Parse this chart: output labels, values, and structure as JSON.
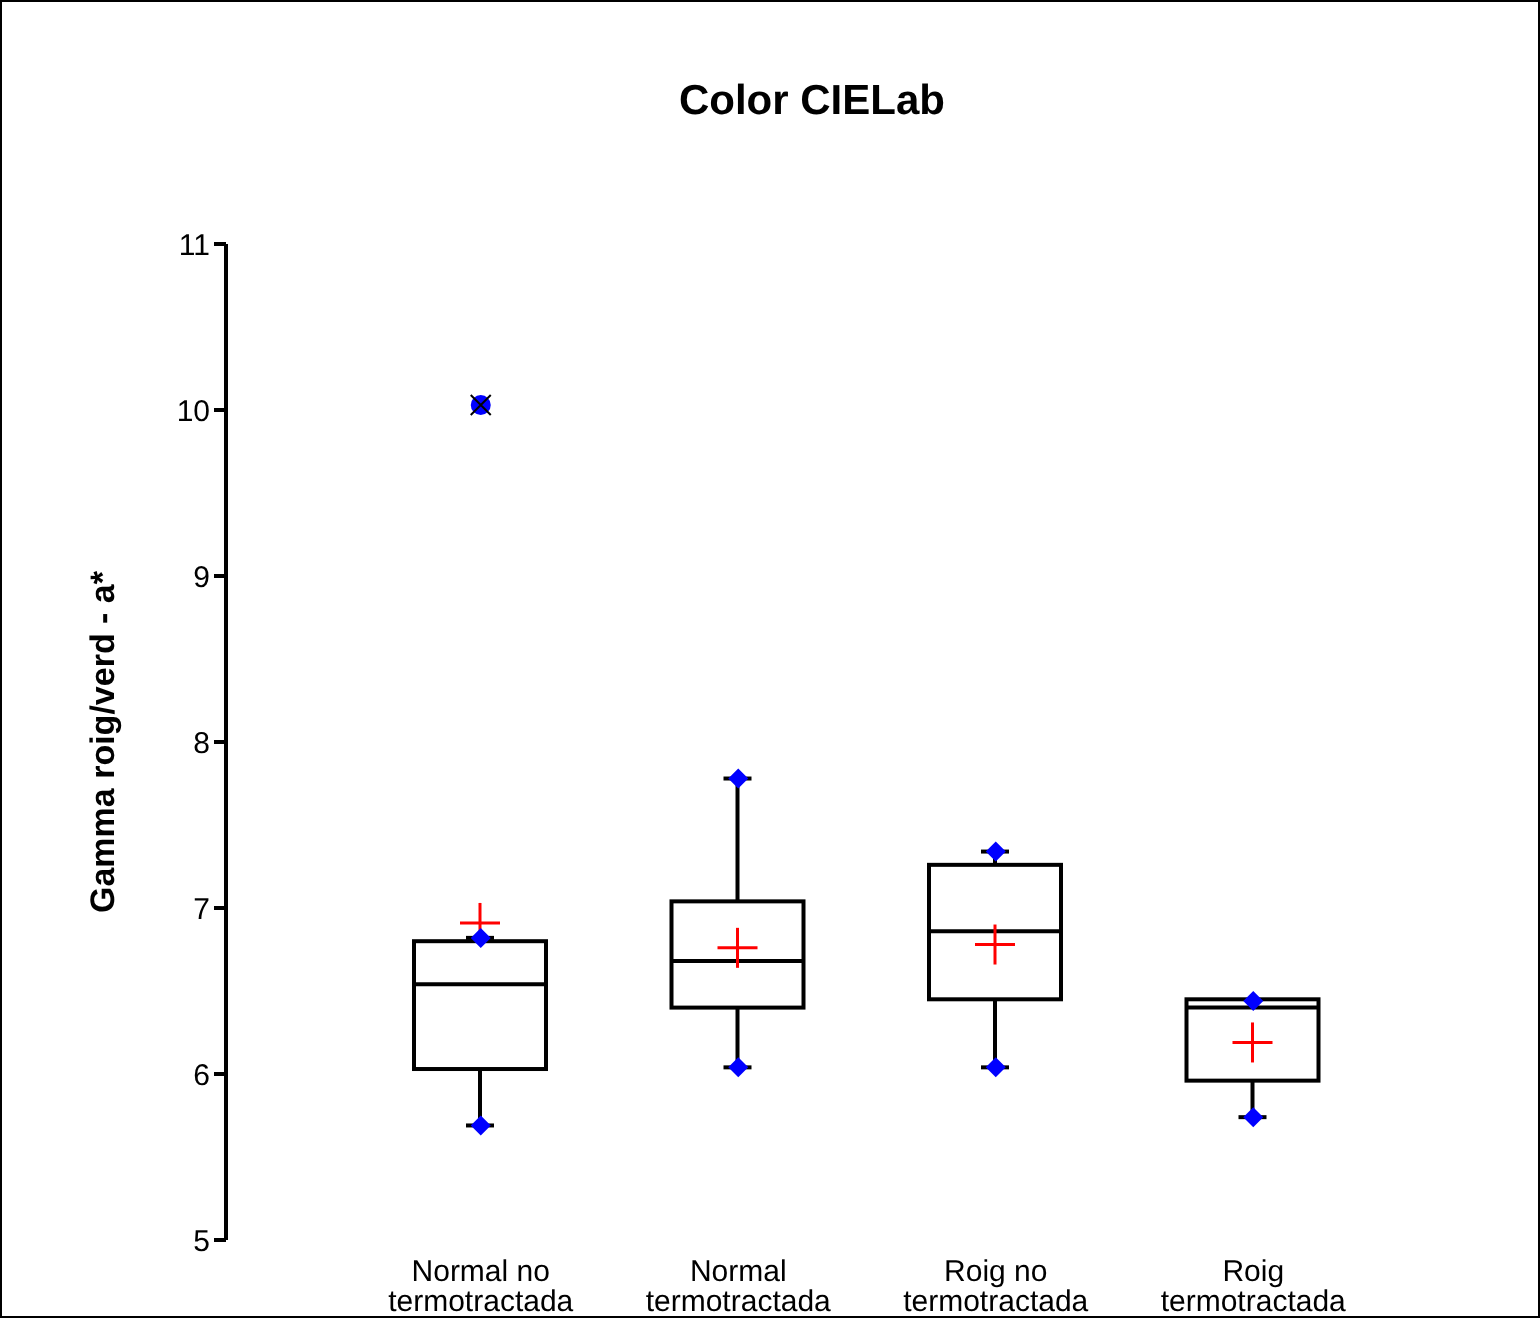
{
  "chart_data": {
    "type": "box",
    "title": "Color CIELab",
    "ylabel": "Gamma roig/verd - a*",
    "categories": [
      "Normal no termotractada",
      "Normal termotractada",
      "Roig no termotractada",
      "Roig termotractada"
    ],
    "boxes": [
      {
        "low": 5.69,
        "q1": 6.03,
        "median": 6.54,
        "q3": 6.8,
        "high": 6.82,
        "mean": 6.91,
        "outliers": [
          10.03
        ]
      },
      {
        "low": 6.04,
        "q1": 6.4,
        "median": 6.68,
        "q3": 7.04,
        "high": 7.78,
        "mean": 6.76
      },
      {
        "low": 6.04,
        "q1": 6.45,
        "median": 6.86,
        "q3": 7.26,
        "high": 7.34,
        "mean": 6.78
      },
      {
        "low": 5.74,
        "q1": 5.96,
        "median": 6.4,
        "q3": 6.45,
        "high": 6.44,
        "mean": 6.19
      }
    ],
    "series": [
      {
        "type": "scatter",
        "color": "#0000ff",
        "marker": "diamond",
        "x": [
          "Normal no termotractada",
          "Normal no termotractada",
          "Normal termotractada",
          "Normal termotractada",
          "Roig no termotractada",
          "Roig no termotractada",
          "Roig termotractada",
          "Roig termotractada"
        ],
        "values": [
          5.69,
          6.82,
          6.04,
          7.78,
          6.04,
          7.34,
          5.74,
          6.44
        ]
      }
    ],
    "ylim": [
      5,
      11
    ],
    "yticks": [
      5,
      6,
      7,
      8,
      9,
      10,
      11
    ]
  }
}
